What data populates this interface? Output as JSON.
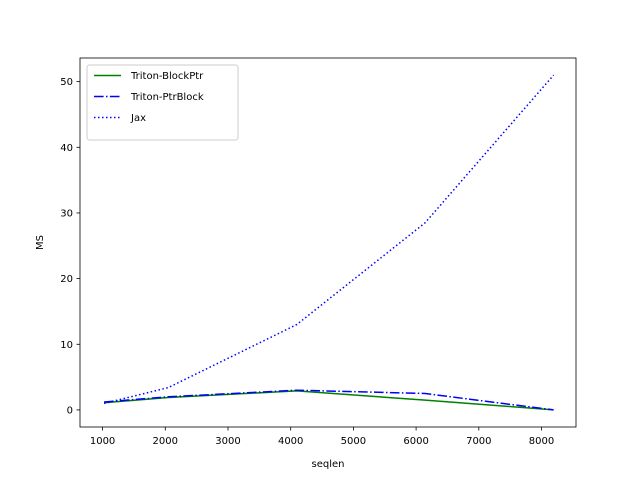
{
  "chart_data": {
    "type": "line",
    "title": "",
    "xlabel": "seqlen",
    "ylabel": "MS",
    "xlim": [
      640,
      8550
    ],
    "ylim": [
      -2.6,
      53.6
    ],
    "xticks": [
      1000,
      2000,
      3000,
      4000,
      5000,
      6000,
      7000,
      8000
    ],
    "yticks": [
      0,
      10,
      20,
      30,
      40,
      50
    ],
    "grid": false,
    "legend_position": "upper left",
    "x": [
      1024,
      2048,
      4096,
      6144,
      8192
    ],
    "series": [
      {
        "name": "Triton-BlockPtr",
        "color": "#008000",
        "linestyle": "solid",
        "values": [
          1.1,
          1.9,
          2.9,
          1.5,
          0.0
        ]
      },
      {
        "name": "Triton-PtrBlock",
        "color": "#0000ff",
        "linestyle": "dashdot",
        "values": [
          1.2,
          2.0,
          3.0,
          2.5,
          0.0
        ]
      },
      {
        "name": "Jax",
        "color": "#0000ff",
        "linestyle": "dotted",
        "values": [
          1.0,
          3.4,
          13.0,
          28.5,
          51.0
        ]
      }
    ]
  }
}
